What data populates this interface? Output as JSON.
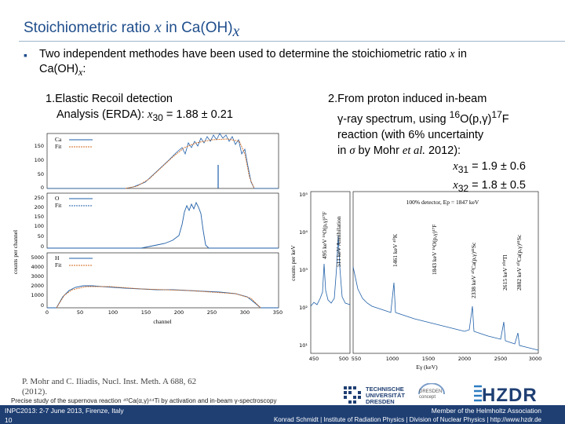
{
  "title": {
    "text": "Stoichiometric ratio ",
    "var": "x",
    "suffix": " in Ca(OH)",
    "sub": "x"
  },
  "bullet": {
    "text1": "Two independent methodes have been used to determine the stoichiometric ratio ",
    "var": "x",
    "text2": " in Ca(OH)",
    "sub": "x",
    "end": ":"
  },
  "method1": {
    "line1": "1.Elastic Recoil detection",
    "line2": "Analysis (ERDA): ",
    "var": "x",
    "sub": "30",
    "value": " = 1.88 ± 0.21"
  },
  "method2": {
    "line1": "2.From proton induced in-beam",
    "line2a": "γ-ray spectrum, using ",
    "sup1": "16",
    "line2b": "O(p,γ)",
    "sup2": "17",
    "line2c": "F",
    "line3": "reaction (with 6% uncertainty",
    "line4a": "in ",
    "sigma": "σ",
    "line4b": " by Mohr ",
    "etal": "et al.",
    "line4c": " 2012):",
    "res1_var": "x",
    "res1_sub": "31",
    "res1_val": " = 1.9 ± 0.6",
    "res2_var": "x",
    "res2_sub": "32",
    "res2_val": " = 1.8 ± 0.5"
  },
  "erda": {
    "ylabel": "counts per channel",
    "xlabel": "channel",
    "panels": [
      {
        "legend": [
          "Ca",
          "Fit"
        ],
        "yticks": [
          "150",
          "100",
          "50",
          "0"
        ]
      },
      {
        "legend": [
          "O",
          "Fit"
        ],
        "yticks": [
          "250",
          "200",
          "150",
          "100",
          "50",
          "0"
        ]
      },
      {
        "legend": [
          "H",
          "Fit"
        ],
        "yticks": [
          "5000",
          "4000",
          "3000",
          "2000",
          "1000",
          "0"
        ]
      }
    ],
    "xticks": [
      "0",
      "50",
      "100",
      "150",
      "200",
      "250",
      "300",
      "350"
    ]
  },
  "gamma": {
    "ylabel": "counts per keV",
    "xlabel": "Eγ (keV)",
    "detector": "100% detector, Ep = 1847 keV",
    "yticks": [
      "10⁵",
      "10⁴",
      "10³",
      "10²",
      "10¹"
    ],
    "xticks_left": [
      "450",
      "500"
    ],
    "xticks_right": [
      "550",
      "1000",
      "1500",
      "2000",
      "2500",
      "3000"
    ],
    "labels": [
      "495 keV ¹⁶O(p,γ)¹⁷F",
      "511 keV Annihilation",
      "1461 keV ⁴⁰K",
      "1843 keV ¹⁶O(p,γ)¹⁷F",
      "2338 keV ⁴⁰Ca(p,γ)⁴¹Sc",
      "2615 keV ²⁰⁸Tl",
      "2882 keV ⁴⁰Ca(p,γ)⁴¹Sc"
    ]
  },
  "reference": {
    "line1": "P. Mohr and C. Iliadis, Nucl. Inst. Meth. A 688, 62",
    "line2": "(2012)."
  },
  "footer": {
    "precise": "Precise study of the supernova reaction ⁴⁰Ca(α,γ)⁴⁴Ti by activation and in-beam γ-spectroscopy",
    "conf": "INPC2013: 2-7 June 2013, Firenze, Italy",
    "page": "10",
    "member": "Member of the Helmholtz Association",
    "author": "Konrad Schmidt | Institute of Radiation Physics | Division of Nuclear Physics | http://www.hzdr.de"
  },
  "logos": {
    "tu1": "TECHNISCHE",
    "tu2": "UNIVERSITÄT",
    "tu3": "DRESDEN",
    "dc1": "DRESDEN",
    "dc2": "concept",
    "hzdr": "HZDR"
  },
  "colors": {
    "accent": "#1f4e8c",
    "footer": "#1f3f73",
    "data": "#1f5fa8",
    "fit": "#d2691e"
  }
}
